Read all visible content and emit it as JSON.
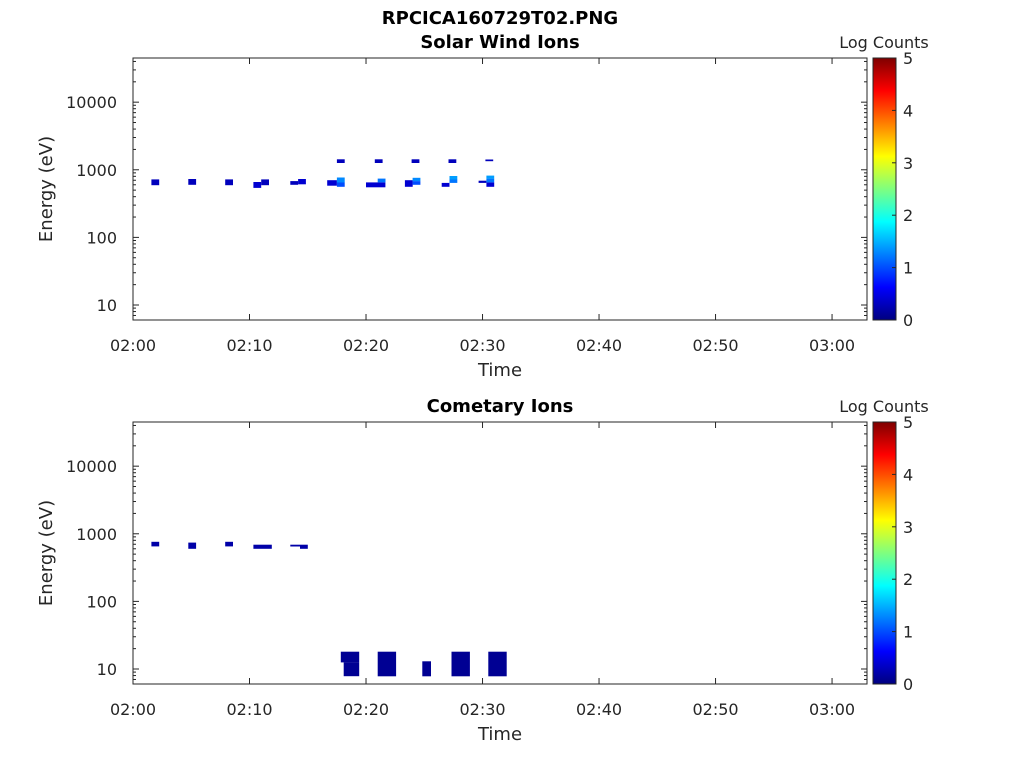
{
  "figure": {
    "title": "RPCICA160729T02.PNG"
  },
  "colormap": {
    "stops": [
      "#00007f",
      "#0000ff",
      "#007fff",
      "#00ffff",
      "#7fff7f",
      "#ffff00",
      "#ff7f00",
      "#ff0000",
      "#7f0000"
    ]
  },
  "chart_data": [
    {
      "type": "heatmap",
      "title": "Solar Wind Ions",
      "xlabel": "Time",
      "ylabel": "Energy (eV)",
      "x_range": [
        "02:00",
        "03:03"
      ],
      "x_ticks": [
        "02:00",
        "02:10",
        "02:20",
        "02:30",
        "02:40",
        "02:50",
        "03:00"
      ],
      "y_scale": "log",
      "y_range": [
        6,
        45000
      ],
      "y_ticks": [
        "10",
        "100",
        "1000",
        "10000"
      ],
      "colorbar": {
        "label": "Log Counts",
        "range": [
          0,
          5
        ],
        "ticks": [
          "0",
          "1",
          "2",
          "3",
          "4",
          "5"
        ]
      },
      "cells": [
        {
          "t0": "02:01:35",
          "t1": "02:02:15",
          "e0": 590,
          "e1": 720,
          "log_counts": 0.3
        },
        {
          "t0": "02:04:45",
          "t1": "02:05:25",
          "e0": 600,
          "e1": 730,
          "log_counts": 0.3
        },
        {
          "t0": "02:07:55",
          "t1": "02:08:35",
          "e0": 590,
          "e1": 720,
          "log_counts": 0.3
        },
        {
          "t0": "02:10:20",
          "t1": "02:11:00",
          "e0": 540,
          "e1": 660,
          "log_counts": 0.4
        },
        {
          "t0": "02:11:00",
          "t1": "02:11:40",
          "e0": 590,
          "e1": 720,
          "log_counts": 0.3
        },
        {
          "t0": "02:13:30",
          "t1": "02:14:10",
          "e0": 600,
          "e1": 680,
          "log_counts": 0.3
        },
        {
          "t0": "02:14:10",
          "t1": "02:14:50",
          "e0": 610,
          "e1": 730,
          "log_counts": 0.4
        },
        {
          "t0": "02:16:40",
          "t1": "02:17:30",
          "e0": 580,
          "e1": 700,
          "log_counts": 0.4
        },
        {
          "t0": "02:17:30",
          "t1": "02:18:10",
          "e0": 560,
          "e1": 650,
          "log_counts": 1.0
        },
        {
          "t0": "02:17:30",
          "t1": "02:18:10",
          "e0": 650,
          "e1": 770,
          "log_counts": 1.3
        },
        {
          "t0": "02:17:30",
          "t1": "02:18:10",
          "e0": 1260,
          "e1": 1430,
          "log_counts": 0.3
        },
        {
          "t0": "02:20:00",
          "t1": "02:21:40",
          "e0": 550,
          "e1": 650,
          "log_counts": 0.4
        },
        {
          "t0": "02:21:00",
          "t1": "02:21:40",
          "e0": 650,
          "e1": 740,
          "log_counts": 1.2
        },
        {
          "t0": "02:20:45",
          "t1": "02:21:25",
          "e0": 1260,
          "e1": 1430,
          "log_counts": 0.3
        },
        {
          "t0": "02:23:20",
          "t1": "02:24:00",
          "e0": 560,
          "e1": 700,
          "log_counts": 0.4
        },
        {
          "t0": "02:24:00",
          "t1": "02:24:40",
          "e0": 600,
          "e1": 680,
          "log_counts": 1.0
        },
        {
          "t0": "02:24:00",
          "t1": "02:24:40",
          "e0": 680,
          "e1": 760,
          "log_counts": 1.3
        },
        {
          "t0": "02:23:55",
          "t1": "02:24:35",
          "e0": 1260,
          "e1": 1430,
          "log_counts": 0.3
        },
        {
          "t0": "02:26:30",
          "t1": "02:27:10",
          "e0": 560,
          "e1": 640,
          "log_counts": 0.4
        },
        {
          "t0": "02:27:10",
          "t1": "02:27:50",
          "e0": 640,
          "e1": 720,
          "log_counts": 1.2
        },
        {
          "t0": "02:27:10",
          "t1": "02:27:50",
          "e0": 720,
          "e1": 810,
          "log_counts": 1.4
        },
        {
          "t0": "02:27:05",
          "t1": "02:27:45",
          "e0": 1260,
          "e1": 1430,
          "log_counts": 0.3
        },
        {
          "t0": "02:29:40",
          "t1": "02:30:20",
          "e0": 640,
          "e1": 690,
          "log_counts": 0.3
        },
        {
          "t0": "02:30:20",
          "t1": "02:31:00",
          "e0": 560,
          "e1": 650,
          "log_counts": 0.4
        },
        {
          "t0": "02:30:20",
          "t1": "02:31:00",
          "e0": 650,
          "e1": 740,
          "log_counts": 1.2
        },
        {
          "t0": "02:30:20",
          "t1": "02:31:00",
          "e0": 740,
          "e1": 820,
          "log_counts": 1.4
        },
        {
          "t0": "02:30:15",
          "t1": "02:30:55",
          "e0": 1340,
          "e1": 1420,
          "log_counts": 0.3
        }
      ]
    },
    {
      "type": "heatmap",
      "title": "Cometary Ions",
      "xlabel": "Time",
      "ylabel": "Energy (eV)",
      "x_range": [
        "02:00",
        "03:03"
      ],
      "x_ticks": [
        "02:00",
        "02:10",
        "02:20",
        "02:30",
        "02:40",
        "02:50",
        "03:00"
      ],
      "y_scale": "log",
      "y_range": [
        6,
        45000
      ],
      "y_ticks": [
        "10",
        "100",
        "1000",
        "10000"
      ],
      "colorbar": {
        "label": "Log Counts",
        "range": [
          0,
          5
        ],
        "ticks": [
          "0",
          "1",
          "2",
          "3",
          "4",
          "5"
        ]
      },
      "cells": [
        {
          "t0": "02:01:35",
          "t1": "02:02:15",
          "e0": 650,
          "e1": 760,
          "log_counts": 0.2
        },
        {
          "t0": "02:04:45",
          "t1": "02:05:25",
          "e0": 600,
          "e1": 740,
          "log_counts": 0.2
        },
        {
          "t0": "02:07:55",
          "t1": "02:08:35",
          "e0": 650,
          "e1": 760,
          "log_counts": 0.2
        },
        {
          "t0": "02:10:20",
          "t1": "02:11:55",
          "e0": 600,
          "e1": 690,
          "log_counts": 0.2
        },
        {
          "t0": "02:13:30",
          "t1": "02:14:20",
          "e0": 650,
          "e1": 690,
          "log_counts": 0.2
        },
        {
          "t0": "02:14:20",
          "t1": "02:15:00",
          "e0": 600,
          "e1": 690,
          "log_counts": 0.2
        },
        {
          "t0": "02:17:50",
          "t1": "02:18:35",
          "e0": 12.5,
          "e1": 18,
          "log_counts": 0.1
        },
        {
          "t0": "02:18:05",
          "t1": "02:19:25",
          "e0": 7.8,
          "e1": 12.5,
          "log_counts": 0.1
        },
        {
          "t0": "02:18:35",
          "t1": "02:19:25",
          "e0": 12.5,
          "e1": 18,
          "log_counts": 0.1
        },
        {
          "t0": "02:21:00",
          "t1": "02:22:35",
          "e0": 7.8,
          "e1": 18,
          "log_counts": 0.1
        },
        {
          "t0": "02:24:50",
          "t1": "02:25:35",
          "e0": 7.8,
          "e1": 13,
          "log_counts": 0.1
        },
        {
          "t0": "02:27:20",
          "t1": "02:28:55",
          "e0": 7.8,
          "e1": 18,
          "log_counts": 0.1
        },
        {
          "t0": "02:30:30",
          "t1": "02:32:05",
          "e0": 7.8,
          "e1": 18,
          "log_counts": 0.1
        }
      ]
    }
  ]
}
